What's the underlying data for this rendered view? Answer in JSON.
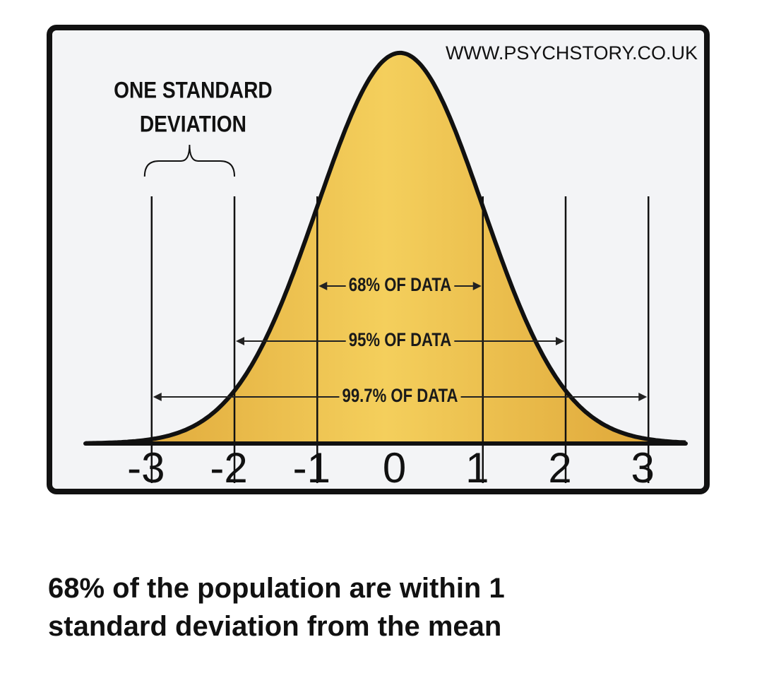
{
  "chart_data": {
    "type": "bell",
    "site": "WWW.PSYCHSTORY.CO.UK",
    "caption": "68% of the population are within 1 standard deviation from the mean",
    "mean": 0,
    "sd": 1,
    "xlim": [
      -3.8,
      3.45
    ],
    "ylim": [
      0,
      0.4
    ],
    "xticks": [
      -3,
      -2,
      -1,
      0,
      1,
      2,
      3
    ],
    "brace": {
      "label_lines": [
        "ONE STANDARD",
        "DEVIATION"
      ],
      "from": -3,
      "to": -2
    },
    "ranges": [
      {
        "label": "68% OF DATA",
        "from": -1,
        "to": 1
      },
      {
        "label": "95% OF DATA",
        "from": -2,
        "to": 2
      },
      {
        "label": "99.7% OF DATA",
        "from": -3,
        "to": 3
      }
    ],
    "colors": {
      "center": "#f4cf5c",
      "edge": "#dca235",
      "frame": "#111111",
      "background": "#f3f4f6"
    }
  }
}
